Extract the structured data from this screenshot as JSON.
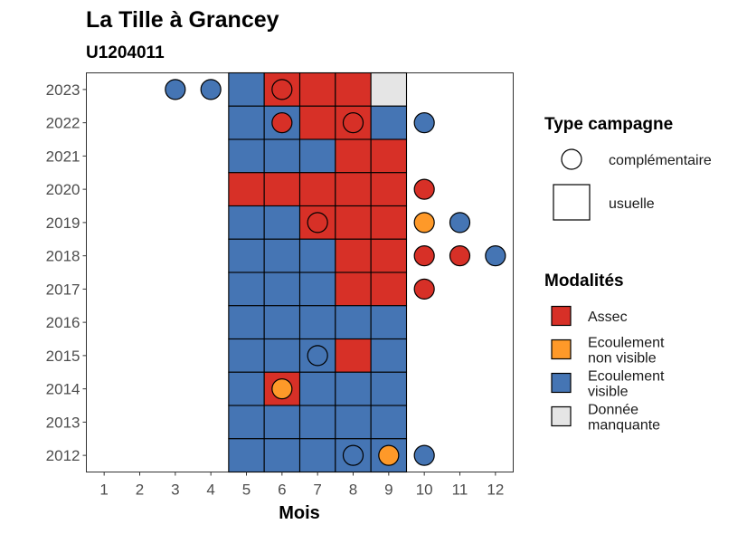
{
  "chart_data": {
    "type": "heatmap",
    "title": "La Tille à Grancey",
    "subtitle": "U1204011",
    "xlabel": "Mois",
    "ylabel": "",
    "x_ticks": [
      1,
      2,
      3,
      4,
      5,
      6,
      7,
      8,
      9,
      10,
      11,
      12
    ],
    "y_ticks": [
      2012,
      2013,
      2014,
      2015,
      2016,
      2017,
      2018,
      2019,
      2020,
      2021,
      2022,
      2023
    ],
    "xlim": [
      0.5,
      12.5
    ],
    "ylim": [
      2011.5,
      2023.5
    ],
    "colors": {
      "Assec": "#d73027",
      "Ecoulement non visible": "#fe9929",
      "Ecoulement visible": "#4575b4",
      "Donnée manquante": "#e5e5e5"
    },
    "tiles": [
      {
        "year": 2023,
        "month": 5,
        "value": "Ecoulement visible"
      },
      {
        "year": 2023,
        "month": 6,
        "value": "Assec"
      },
      {
        "year": 2023,
        "month": 7,
        "value": "Assec"
      },
      {
        "year": 2023,
        "month": 8,
        "value": "Assec"
      },
      {
        "year": 2023,
        "month": 9,
        "value": "Donnée manquante"
      },
      {
        "year": 2022,
        "month": 5,
        "value": "Ecoulement visible"
      },
      {
        "year": 2022,
        "month": 6,
        "value": "Ecoulement visible"
      },
      {
        "year": 2022,
        "month": 7,
        "value": "Assec"
      },
      {
        "year": 2022,
        "month": 8,
        "value": "Assec"
      },
      {
        "year": 2022,
        "month": 9,
        "value": "Ecoulement visible"
      },
      {
        "year": 2021,
        "month": 5,
        "value": "Ecoulement visible"
      },
      {
        "year": 2021,
        "month": 6,
        "value": "Ecoulement visible"
      },
      {
        "year": 2021,
        "month": 7,
        "value": "Ecoulement visible"
      },
      {
        "year": 2021,
        "month": 8,
        "value": "Assec"
      },
      {
        "year": 2021,
        "month": 9,
        "value": "Assec"
      },
      {
        "year": 2020,
        "month": 5,
        "value": "Assec"
      },
      {
        "year": 2020,
        "month": 6,
        "value": "Assec"
      },
      {
        "year": 2020,
        "month": 7,
        "value": "Assec"
      },
      {
        "year": 2020,
        "month": 8,
        "value": "Assec"
      },
      {
        "year": 2020,
        "month": 9,
        "value": "Assec"
      },
      {
        "year": 2019,
        "month": 5,
        "value": "Ecoulement visible"
      },
      {
        "year": 2019,
        "month": 6,
        "value": "Ecoulement visible"
      },
      {
        "year": 2019,
        "month": 7,
        "value": "Assec"
      },
      {
        "year": 2019,
        "month": 8,
        "value": "Assec"
      },
      {
        "year": 2019,
        "month": 9,
        "value": "Assec"
      },
      {
        "year": 2018,
        "month": 5,
        "value": "Ecoulement visible"
      },
      {
        "year": 2018,
        "month": 6,
        "value": "Ecoulement visible"
      },
      {
        "year": 2018,
        "month": 7,
        "value": "Ecoulement visible"
      },
      {
        "year": 2018,
        "month": 8,
        "value": "Assec"
      },
      {
        "year": 2018,
        "month": 9,
        "value": "Assec"
      },
      {
        "year": 2017,
        "month": 5,
        "value": "Ecoulement visible"
      },
      {
        "year": 2017,
        "month": 6,
        "value": "Ecoulement visible"
      },
      {
        "year": 2017,
        "month": 7,
        "value": "Ecoulement visible"
      },
      {
        "year": 2017,
        "month": 8,
        "value": "Assec"
      },
      {
        "year": 2017,
        "month": 9,
        "value": "Assec"
      },
      {
        "year": 2016,
        "month": 5,
        "value": "Ecoulement visible"
      },
      {
        "year": 2016,
        "month": 6,
        "value": "Ecoulement visible"
      },
      {
        "year": 2016,
        "month": 7,
        "value": "Ecoulement visible"
      },
      {
        "year": 2016,
        "month": 8,
        "value": "Ecoulement visible"
      },
      {
        "year": 2016,
        "month": 9,
        "value": "Ecoulement visible"
      },
      {
        "year": 2015,
        "month": 5,
        "value": "Ecoulement visible"
      },
      {
        "year": 2015,
        "month": 6,
        "value": "Ecoulement visible"
      },
      {
        "year": 2015,
        "month": 7,
        "value": "Ecoulement visible"
      },
      {
        "year": 2015,
        "month": 8,
        "value": "Assec"
      },
      {
        "year": 2015,
        "month": 9,
        "value": "Ecoulement visible"
      },
      {
        "year": 2014,
        "month": 5,
        "value": "Ecoulement visible"
      },
      {
        "year": 2014,
        "month": 6,
        "value": "Assec"
      },
      {
        "year": 2014,
        "month": 7,
        "value": "Ecoulement visible"
      },
      {
        "year": 2014,
        "month": 8,
        "value": "Ecoulement visible"
      },
      {
        "year": 2014,
        "month": 9,
        "value": "Ecoulement visible"
      },
      {
        "year": 2013,
        "month": 5,
        "value": "Ecoulement visible"
      },
      {
        "year": 2013,
        "month": 6,
        "value": "Ecoulement visible"
      },
      {
        "year": 2013,
        "month": 7,
        "value": "Ecoulement visible"
      },
      {
        "year": 2013,
        "month": 8,
        "value": "Ecoulement visible"
      },
      {
        "year": 2013,
        "month": 9,
        "value": "Ecoulement visible"
      },
      {
        "year": 2012,
        "month": 5,
        "value": "Ecoulement visible"
      },
      {
        "year": 2012,
        "month": 6,
        "value": "Ecoulement visible"
      },
      {
        "year": 2012,
        "month": 7,
        "value": "Ecoulement visible"
      },
      {
        "year": 2012,
        "month": 8,
        "value": "Ecoulement visible"
      },
      {
        "year": 2012,
        "month": 9,
        "value": "Ecoulement visible"
      }
    ],
    "points": [
      {
        "year": 2023,
        "month": 3,
        "value": "Ecoulement visible"
      },
      {
        "year": 2023,
        "month": 4,
        "value": "Ecoulement visible"
      },
      {
        "year": 2023,
        "month": 6,
        "value": "Assec"
      },
      {
        "year": 2022,
        "month": 6,
        "value": "Assec"
      },
      {
        "year": 2022,
        "month": 8,
        "value": "Assec"
      },
      {
        "year": 2022,
        "month": 10,
        "value": "Ecoulement visible"
      },
      {
        "year": 2020,
        "month": 10,
        "value": "Assec"
      },
      {
        "year": 2019,
        "month": 7,
        "value": "Assec"
      },
      {
        "year": 2019,
        "month": 10,
        "value": "Ecoulement non visible"
      },
      {
        "year": 2019,
        "month": 11,
        "value": "Ecoulement visible"
      },
      {
        "year": 2018,
        "month": 10,
        "value": "Assec"
      },
      {
        "year": 2018,
        "month": 11,
        "value": "Assec"
      },
      {
        "year": 2018,
        "month": 12,
        "value": "Ecoulement visible"
      },
      {
        "year": 2017,
        "month": 10,
        "value": "Assec"
      },
      {
        "year": 2015,
        "month": 7,
        "value": "Ecoulement visible"
      },
      {
        "year": 2014,
        "month": 6,
        "value": "Ecoulement non visible"
      },
      {
        "year": 2012,
        "month": 8,
        "value": "Ecoulement visible"
      },
      {
        "year": 2012,
        "month": 9,
        "value": "Ecoulement non visible"
      },
      {
        "year": 2012,
        "month": 10,
        "value": "Ecoulement visible"
      }
    ],
    "legend_type": {
      "title": "Type campagne",
      "entries": [
        {
          "label": "complémentaire",
          "shape": "circle"
        },
        {
          "label": "usuelle",
          "shape": "square"
        }
      ]
    },
    "legend_modalites": {
      "title": "Modalités",
      "entries": [
        {
          "key": "Assec",
          "lines": [
            "Assec"
          ]
        },
        {
          "key": "Ecoulement non visible",
          "lines": [
            "Ecoulement",
            "non visible"
          ]
        },
        {
          "key": "Ecoulement visible",
          "lines": [
            "Ecoulement",
            "visible"
          ]
        },
        {
          "key": "Donnée manquante",
          "lines": [
            "Donnée",
            "manquante"
          ]
        }
      ]
    },
    "legend_placement": "right",
    "grid": false
  }
}
